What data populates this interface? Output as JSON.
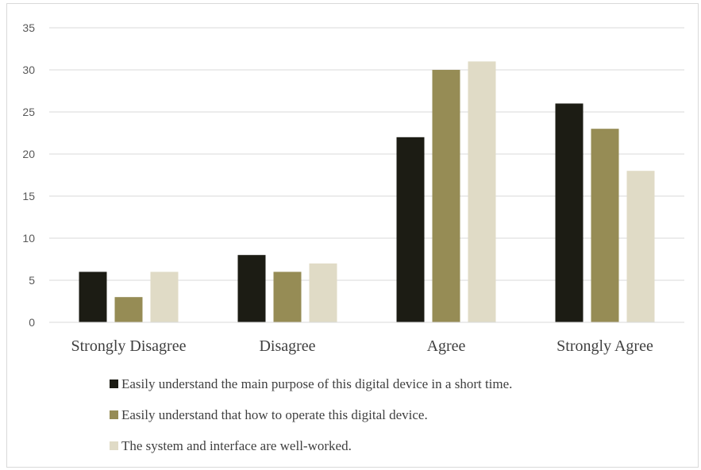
{
  "chart_data": {
    "type": "bar",
    "categories": [
      "Strongly Disagree",
      "Disagree",
      "Agree",
      "Strongly Agree"
    ],
    "series": [
      {
        "name": "Easily understand the main purpose of this digital device in a short time.",
        "color": "#1c1c14",
        "values": [
          6,
          8,
          22,
          26
        ]
      },
      {
        "name": "Easily understand that how to operate this digital device.",
        "color": "#968c55",
        "values": [
          3,
          6,
          30,
          23
        ]
      },
      {
        "name": "The system and interface are well-worked.",
        "color": "#e0dbc6",
        "values": [
          6,
          7,
          31,
          18
        ]
      }
    ],
    "ylim": [
      0,
      35
    ],
    "yticks": [
      0,
      5,
      10,
      15,
      20,
      25,
      30,
      35
    ],
    "grid": true,
    "legend_position": "bottom",
    "gridline_color": "#d9d9d9"
  }
}
